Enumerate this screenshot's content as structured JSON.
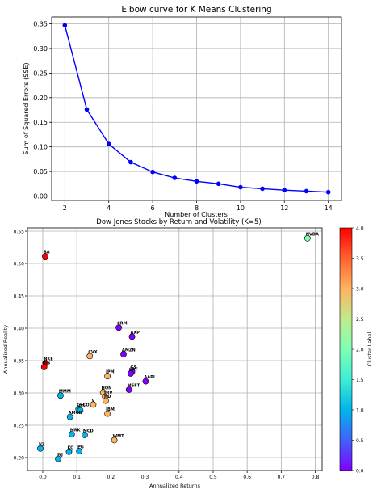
{
  "chart_data": [
    {
      "type": "line",
      "title": "Elbow curve for K Means Clustering",
      "xlabel": "Number of Clusters",
      "ylabel": "Sum of Squared Errors (SSE)",
      "x": [
        2,
        3,
        4,
        5,
        6,
        7,
        8,
        9,
        10,
        11,
        12,
        13,
        14
      ],
      "y": [
        0.347,
        0.176,
        0.106,
        0.069,
        0.049,
        0.037,
        0.03,
        0.025,
        0.018,
        0.015,
        0.012,
        0.01,
        0.008
      ],
      "xticks": [
        "2",
        "4",
        "6",
        "8",
        "10",
        "12",
        "14"
      ],
      "yticks": [
        "0.00",
        "0.05",
        "0.10",
        "0.15",
        "0.20",
        "0.25",
        "0.30",
        "0.35"
      ],
      "xlim": [
        1.4,
        14.6
      ],
      "ylim": [
        -0.009,
        0.364
      ],
      "grid": true,
      "color": "#0000ff"
    },
    {
      "type": "scatter",
      "title": "Dow Jones Stocks by Return and Volatility (K=5)",
      "xlabel": "Annualized Returns",
      "ylabel": "Annualized Reality",
      "xticks": [
        "0.0",
        "0.1",
        "0.2",
        "0.3",
        "0.4",
        "0.5",
        "0.6",
        "0.7",
        "0.8"
      ],
      "yticks": [
        "0.20",
        "0.25",
        "0.30",
        "0.35",
        "0.40",
        "0.45",
        "0.50",
        "0.55"
      ],
      "xlim": [
        -0.045,
        0.82
      ],
      "ylim": [
        0.18,
        0.555
      ],
      "grid": true,
      "colorbar": {
        "label": "Cluster Label",
        "min": 0.0,
        "max": 4.0,
        "ticks": [
          "0.0",
          "0.5",
          "1.0",
          "1.5",
          "2.0",
          "2.5",
          "3.0",
          "3.5",
          "4.0"
        ],
        "colormap": "rainbow"
      },
      "points": [
        {
          "label": "BA",
          "x": 0.007,
          "y": 0.511,
          "cluster": 4
        },
        {
          "label": "NVDA",
          "x": 0.777,
          "y": 0.539,
          "cluster": 2
        },
        {
          "label": "CRM",
          "x": 0.223,
          "y": 0.401,
          "cluster": 0
        },
        {
          "label": "AXP",
          "x": 0.262,
          "y": 0.387,
          "cluster": 0
        },
        {
          "label": "AMZN",
          "x": 0.237,
          "y": 0.36,
          "cluster": 0
        },
        {
          "label": "CVX",
          "x": 0.138,
          "y": 0.357,
          "cluster": 3
        },
        {
          "label": "NKE",
          "x": 0.008,
          "y": 0.346,
          "cluster": 4
        },
        {
          "label": "DIS",
          "x": 0.004,
          "y": 0.34,
          "cluster": 4
        },
        {
          "label": "GS",
          "x": 0.262,
          "y": 0.333,
          "cluster": 0
        },
        {
          "label": "JPM",
          "x": 0.19,
          "y": 0.326,
          "cluster": 3
        },
        {
          "label": "CAT",
          "x": 0.258,
          "y": 0.33,
          "cluster": 0
        },
        {
          "label": "AAPL",
          "x": 0.302,
          "y": 0.318,
          "cluster": 0
        },
        {
          "label": "MSFT",
          "x": 0.253,
          "y": 0.305,
          "cluster": 0
        },
        {
          "label": "MMM",
          "x": 0.052,
          "y": 0.296,
          "cluster": 1
        },
        {
          "label": "HON",
          "x": 0.177,
          "y": 0.301,
          "cluster": 3
        },
        {
          "label": "TRV",
          "x": 0.183,
          "y": 0.294,
          "cluster": 3
        },
        {
          "label": "HD",
          "x": 0.185,
          "y": 0.288,
          "cluster": 3
        },
        {
          "label": "V",
          "x": 0.148,
          "y": 0.282,
          "cluster": 3
        },
        {
          "label": "CSCO",
          "x": 0.105,
          "y": 0.275,
          "cluster": 1
        },
        {
          "label": "PG",
          "x": 0.11,
          "y": 0.273,
          "cluster": 1
        },
        {
          "label": "IBM",
          "x": 0.19,
          "y": 0.268,
          "cluster": 3
        },
        {
          "label": "AMGN",
          "x": 0.08,
          "y": 0.263,
          "cluster": 1
        },
        {
          "label": "MRK",
          "x": 0.085,
          "y": 0.236,
          "cluster": 1
        },
        {
          "label": "MCD",
          "x": 0.123,
          "y": 0.235,
          "cluster": 1
        },
        {
          "label": "WMT",
          "x": 0.21,
          "y": 0.227,
          "cluster": 3
        },
        {
          "label": "VZ",
          "x": -0.007,
          "y": 0.214,
          "cluster": 1
        },
        {
          "label": "KO",
          "x": 0.077,
          "y": 0.209,
          "cluster": 1
        },
        {
          "label": "PG",
          "x": 0.107,
          "y": 0.21,
          "cluster": 1
        },
        {
          "label": "JNJ",
          "x": 0.045,
          "y": 0.198,
          "cluster": 1
        }
      ]
    }
  ]
}
